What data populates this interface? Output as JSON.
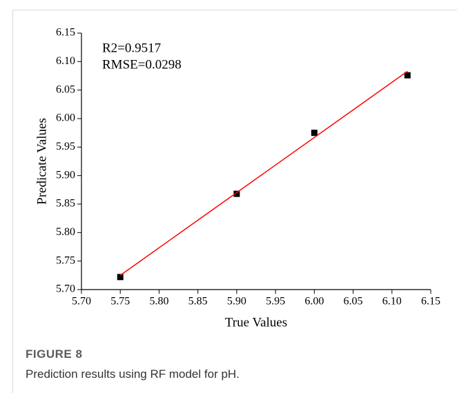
{
  "chart_data": {
    "type": "scatter",
    "x_label": "True Values",
    "y_label": "Predicate Values",
    "annotations": [
      "R2=0.9517",
      "RMSE=0.0298"
    ],
    "series": [
      {
        "color": "#000000",
        "mode": "markers",
        "x": [
          5.75,
          5.9,
          6.0,
          6.12
        ],
        "values": [
          5.722,
          5.868,
          5.975,
          6.076
        ]
      },
      {
        "color": "#ff0000",
        "mode": "line",
        "x": [
          5.75,
          6.12
        ],
        "values": [
          5.725,
          6.083
        ]
      }
    ],
    "xlim": [
      5.7,
      6.15
    ],
    "ylim": [
      5.7,
      6.15
    ],
    "xticks": [
      {
        "value": 5.7,
        "label": "5.70"
      },
      {
        "value": 5.75,
        "label": "5.75"
      },
      {
        "value": 5.8,
        "label": "5.80"
      },
      {
        "value": 5.85,
        "label": "5.85"
      },
      {
        "value": 5.9,
        "label": "5.90"
      },
      {
        "value": 5.95,
        "label": "5.95"
      },
      {
        "value": 6.0,
        "label": "6.00"
      },
      {
        "value": 6.05,
        "label": "6.05"
      },
      {
        "value": 6.1,
        "label": "6.10"
      },
      {
        "value": 6.15,
        "label": "6.15"
      }
    ],
    "yticks": [
      {
        "value": 5.7,
        "label": "5.70"
      },
      {
        "value": 5.75,
        "label": "5.75"
      },
      {
        "value": 5.8,
        "label": "5.80"
      },
      {
        "value": 5.85,
        "label": "5.85"
      },
      {
        "value": 5.9,
        "label": "5.90"
      },
      {
        "value": 5.95,
        "label": "5.95"
      },
      {
        "value": 6.0,
        "label": "6.00"
      },
      {
        "value": 6.05,
        "label": "6.05"
      },
      {
        "value": 6.1,
        "label": "6.10"
      },
      {
        "value": 6.15,
        "label": "6.15"
      }
    ],
    "grid": false
  },
  "figure": {
    "label": "FIGURE 8",
    "caption": "Prediction results using RF model for pH."
  }
}
